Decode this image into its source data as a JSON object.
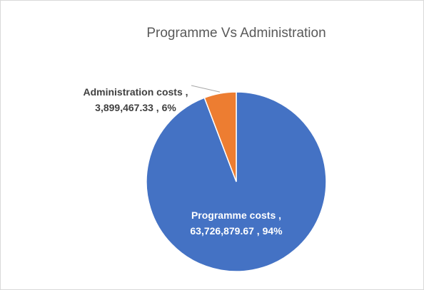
{
  "chart_data": {
    "type": "pie",
    "title": "Programme Vs Administration",
    "categories": [
      "Programme costs",
      "Administration costs"
    ],
    "values": [
      63726879.67,
      3899467.33
    ],
    "value_labels": [
      "63,726,879.67",
      "3,899,467.33"
    ],
    "percents": [
      94,
      6
    ],
    "percent_labels": [
      "94%",
      "6%"
    ],
    "colors": [
      "#4472c4",
      "#ed7d31"
    ]
  }
}
